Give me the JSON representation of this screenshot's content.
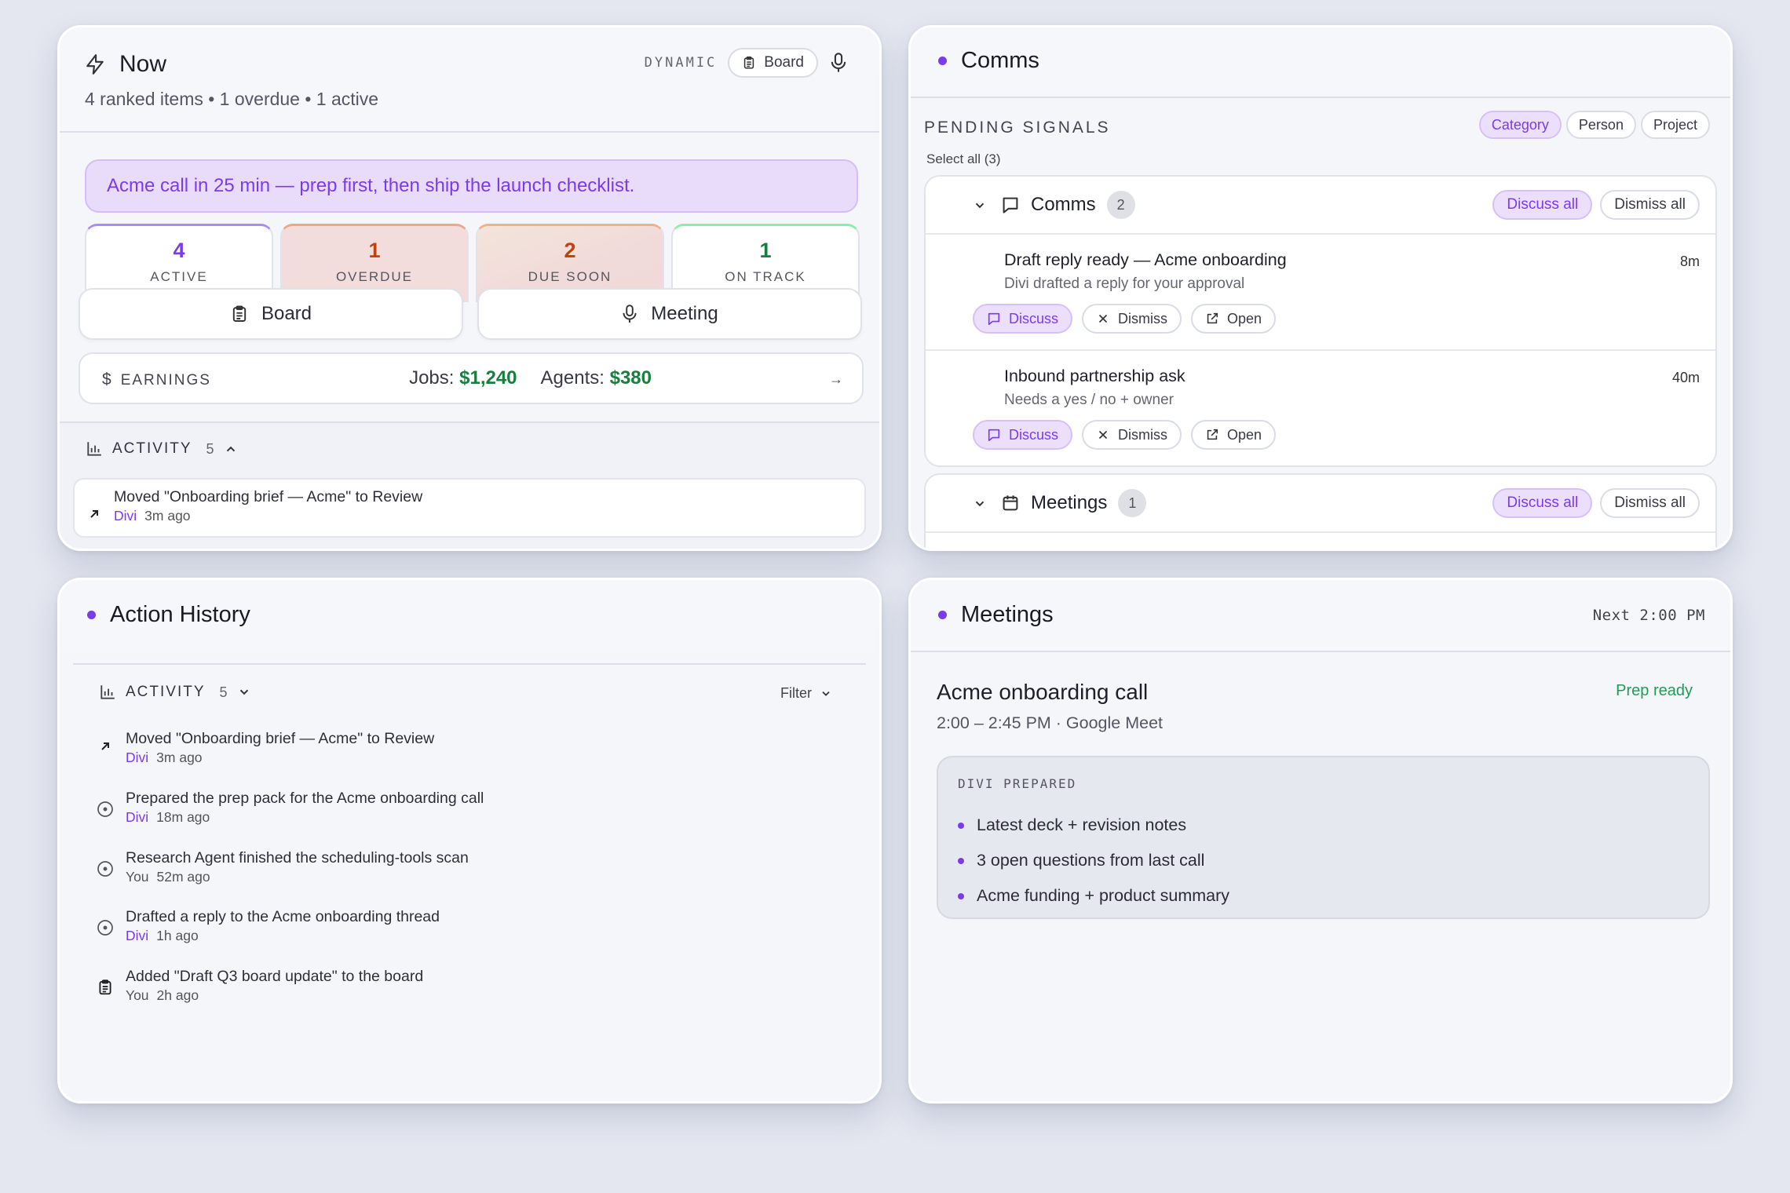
{
  "now": {
    "title": "Now",
    "subtitle": "4 ranked items • 1 overdue • 1 active",
    "mode": "DYNAMIC",
    "board_pill": "Board",
    "banner": "Acme call in 25 min — prep first, then ship the launch checklist.",
    "stats": [
      {
        "value": "4",
        "label": "ACTIVE",
        "color": "#7c3aed"
      },
      {
        "value": "1",
        "label": "OVERDUE",
        "color": "#c2410c"
      },
      {
        "value": "2",
        "label": "DUE SOON",
        "color": "#c2410c"
      },
      {
        "value": "1",
        "label": "ON TRACK",
        "color": "#15803d"
      }
    ],
    "board_button": "Board",
    "meeting_button": "Meeting",
    "earnings": {
      "label": "EARNINGS",
      "jobs_label": "Jobs:",
      "jobs_value": "$1,240",
      "agents_label": "Agents:",
      "agents_value": "$380"
    },
    "activity": {
      "label": "ACTIVITY",
      "count": "5",
      "item": {
        "text": "Moved \"Onboarding brief — Acme\" to Review",
        "who": "Divi",
        "when": "3m ago"
      }
    }
  },
  "comms": {
    "title": "Comms",
    "pending_label": "PENDING SIGNALS",
    "filters": [
      "Category",
      "Person",
      "Project"
    ],
    "select_all": "Select all (3)",
    "groups": [
      {
        "name": "Comms",
        "count": "2",
        "discuss_all": "Discuss all",
        "dismiss_all": "Dismiss all",
        "items": [
          {
            "title": "Draft reply ready — Acme onboarding",
            "subtitle": "Divi drafted a reply for your approval",
            "time": "8m"
          },
          {
            "title": "Inbound partnership ask",
            "subtitle": "Needs a yes / no + owner",
            "time": "40m"
          }
        ]
      },
      {
        "name": "Meetings",
        "count": "1",
        "discuss_all": "Discuss all",
        "dismiss_all": "Dismiss all",
        "items": []
      }
    ],
    "actions": {
      "discuss": "Discuss",
      "dismiss": "Dismiss",
      "open": "Open"
    }
  },
  "history": {
    "title": "Action History",
    "activity_label": "ACTIVITY",
    "count": "5",
    "filter": "Filter",
    "items": [
      {
        "text": "Moved \"Onboarding brief — Acme\" to Review",
        "who": "Divi",
        "when": "3m ago",
        "icon": "arrow-up-right-icon"
      },
      {
        "text": "Prepared the prep pack for the Acme onboarding call",
        "who": "Divi",
        "when": "18m ago",
        "icon": "circle-dot-icon"
      },
      {
        "text": "Research Agent finished the scheduling-tools scan",
        "who": "You",
        "when": "52m ago",
        "icon": "circle-dot-icon"
      },
      {
        "text": "Drafted a reply to the Acme onboarding thread",
        "who": "Divi",
        "when": "1h ago",
        "icon": "circle-dot-icon"
      },
      {
        "text": "Added \"Draft Q3 board update\" to the board",
        "who": "You",
        "when": "2h ago",
        "icon": "clipboard-icon"
      }
    ]
  },
  "meetings": {
    "title": "Meetings",
    "next": "Next 2:00 PM",
    "meeting_title": "Acme onboarding call",
    "meeting_sub": "2:00 – 2:45 PM · Google Meet",
    "status": "Prep ready",
    "prep_caption": "DIVI PREPARED",
    "prep_items": [
      "Latest deck + revision notes",
      "3 open questions from last call",
      "Acme funding + product summary"
    ]
  }
}
